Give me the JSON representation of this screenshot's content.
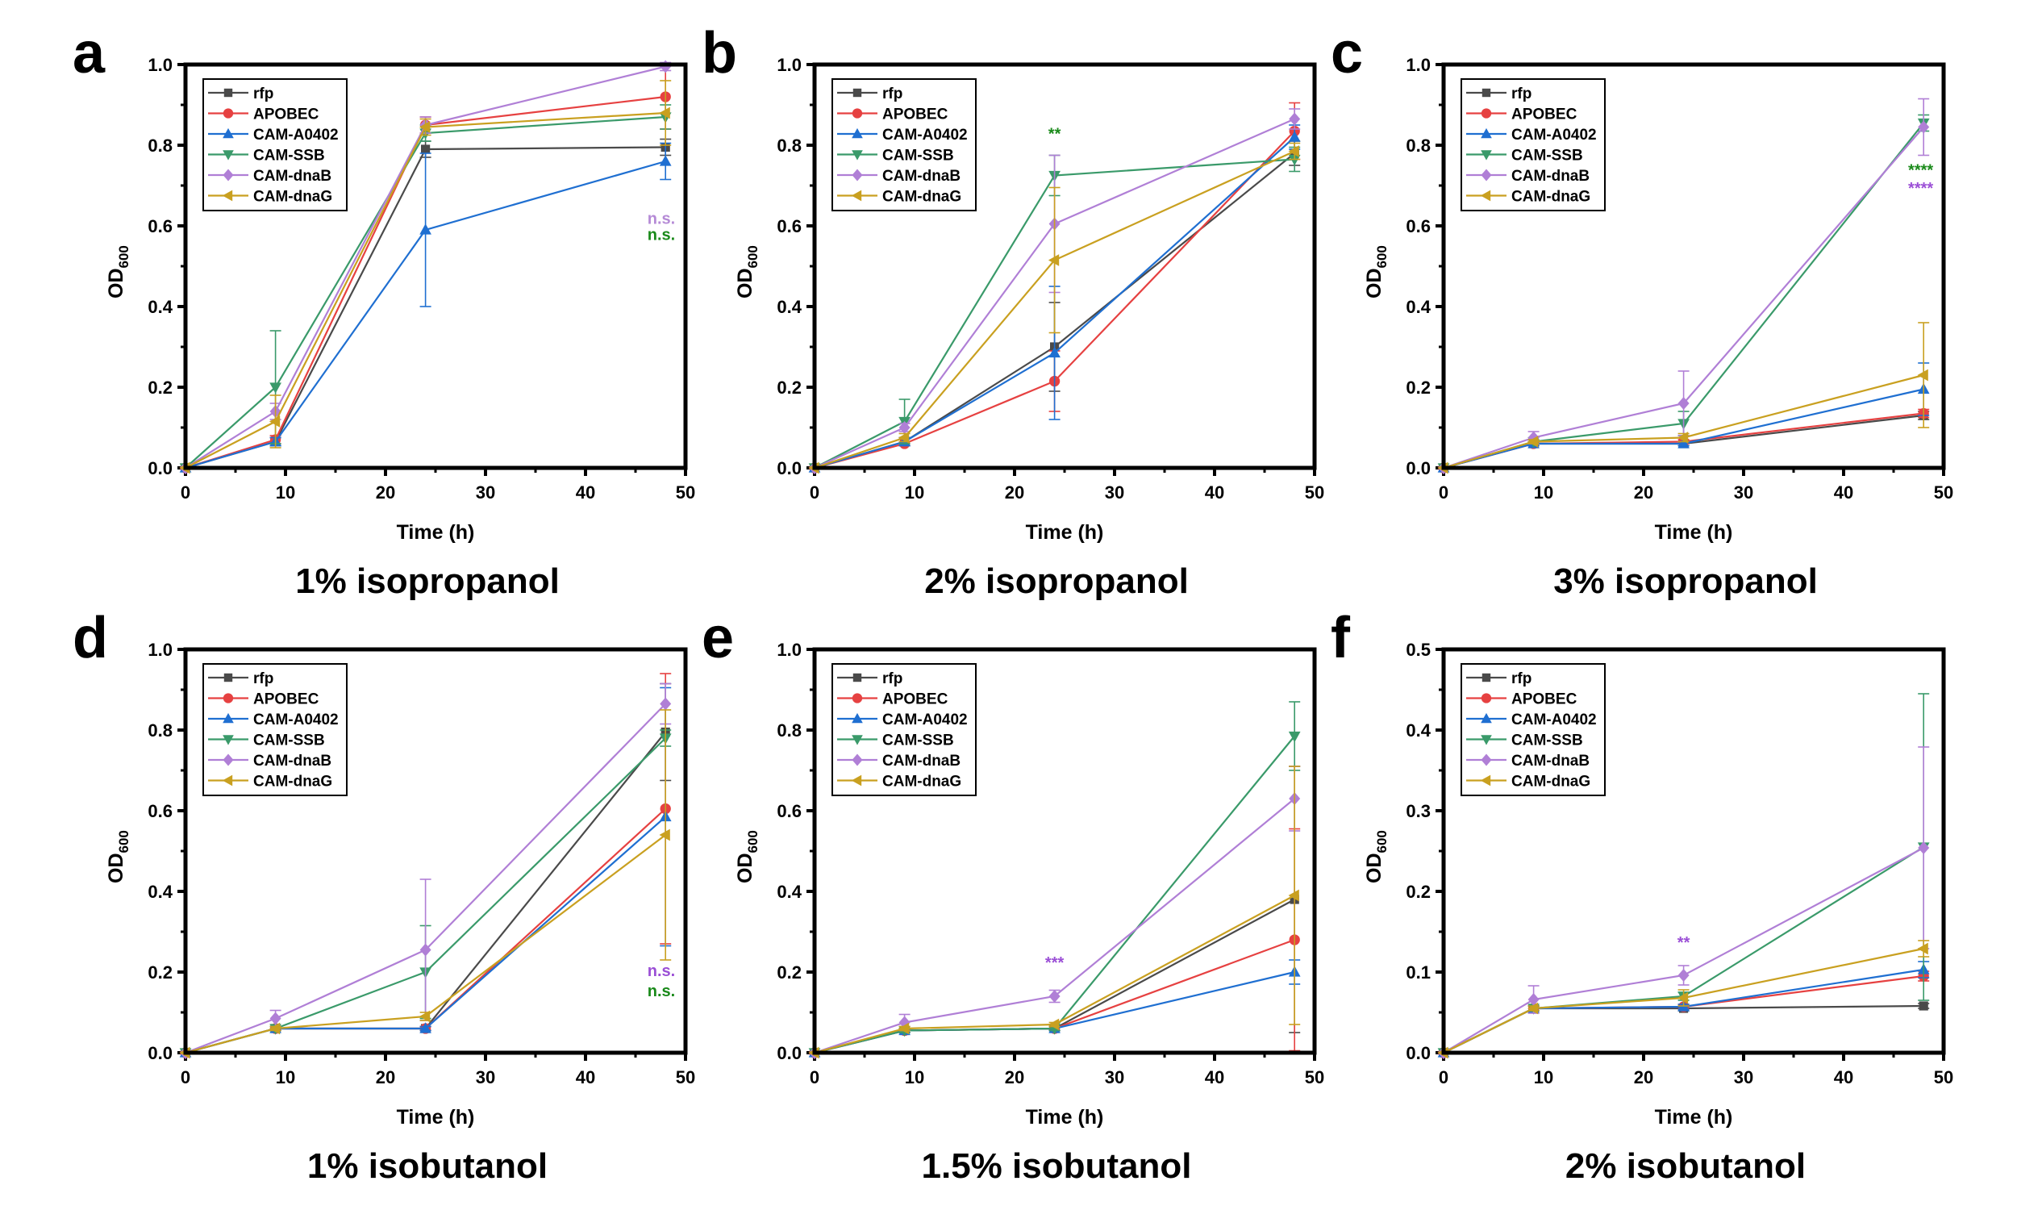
{
  "figure": {
    "series_styles": [
      {
        "name": "rfp",
        "color": "#4a4a4a",
        "marker": "square"
      },
      {
        "name": "APOBEC",
        "color": "#e64141",
        "marker": "circle"
      },
      {
        "name": "CAM-A0402",
        "color": "#1f6fd1",
        "marker": "triangle-up"
      },
      {
        "name": "CAM-SSB",
        "color": "#3a9a6a",
        "marker": "triangle-down"
      },
      {
        "name": "CAM-dnaB",
        "color": "#b07fd6",
        "marker": "diamond"
      },
      {
        "name": "CAM-dnaG",
        "color": "#c9a020",
        "marker": "triangle-left"
      }
    ],
    "annotation_colors": {
      "green": "#1a8a1a",
      "purple": "#9b4fd6",
      "lavender": "#b58ad6"
    }
  },
  "chart_data": [
    {
      "type": "line",
      "panel": "a",
      "title": "1% isopropanol",
      "xlabel": "Time (h)",
      "ylabel": "OD600",
      "ylabel_main": "OD",
      "ylabel_sub": "600",
      "xlim": [
        0,
        50
      ],
      "ylim": [
        0,
        1.0
      ],
      "xticks": [
        "0",
        "10",
        "20",
        "30",
        "40",
        "50"
      ],
      "yticks": [
        "0.0",
        "0.2",
        "0.4",
        "0.6",
        "0.8",
        "1.0"
      ],
      "legend_position": "top-left",
      "grid": false,
      "x": [
        0,
        9,
        24,
        48
      ],
      "series": [
        {
          "name": "rfp",
          "values": [
            0,
            0.065,
            0.79,
            0.795
          ],
          "err": [
            0,
            0.01,
            0.02,
            0.02
          ]
        },
        {
          "name": "APOBEC",
          "values": [
            0,
            0.07,
            0.85,
            0.92
          ],
          "err": [
            0,
            0.01,
            0.02,
            0.08
          ]
        },
        {
          "name": "CAM-A0402",
          "values": [
            0,
            0.065,
            0.59,
            0.76
          ],
          "err": [
            0,
            0.01,
            0.19,
            0.045
          ]
        },
        {
          "name": "CAM-SSB",
          "values": [
            0,
            0.2,
            0.83,
            0.87
          ],
          "err": [
            0,
            0.14,
            0.02,
            0.03
          ]
        },
        {
          "name": "CAM-dnaB",
          "values": [
            0,
            0.14,
            0.85,
            0.995
          ],
          "err": [
            0,
            0.02,
            0.02,
            0.01
          ]
        },
        {
          "name": "CAM-dnaG",
          "values": [
            0,
            0.115,
            0.845,
            0.88
          ],
          "err": [
            0,
            0.065,
            0.02,
            0.08
          ]
        }
      ],
      "annotations": [
        {
          "text": "n.s.",
          "x": 48,
          "y": 0.605,
          "color_key": "lavender"
        },
        {
          "text": "n.s.",
          "x": 48,
          "y": 0.565,
          "color_key": "green"
        }
      ]
    },
    {
      "type": "line",
      "panel": "b",
      "title": "2% isopropanol",
      "xlabel": "Time (h)",
      "ylabel": "OD600",
      "ylabel_main": "OD",
      "ylabel_sub": "600",
      "xlim": [
        0,
        50
      ],
      "ylim": [
        0,
        1.0
      ],
      "xticks": [
        "0",
        "10",
        "20",
        "30",
        "40",
        "50"
      ],
      "yticks": [
        "0.0",
        "0.2",
        "0.4",
        "0.6",
        "0.8",
        "1.0"
      ],
      "legend_position": "top-left",
      "grid": false,
      "x": [
        0,
        9,
        24,
        48
      ],
      "series": [
        {
          "name": "rfp",
          "values": [
            0,
            0.065,
            0.3,
            0.78
          ],
          "err": [
            0,
            0.01,
            0.11,
            0.03
          ]
        },
        {
          "name": "APOBEC",
          "values": [
            0,
            0.06,
            0.215,
            0.835
          ],
          "err": [
            0,
            0.005,
            0.075,
            0.07
          ]
        },
        {
          "name": "CAM-A0402",
          "values": [
            0,
            0.065,
            0.285,
            0.82
          ],
          "err": [
            0,
            0.01,
            0.165,
            0.03
          ]
        },
        {
          "name": "CAM-SSB",
          "values": [
            0,
            0.115,
            0.725,
            0.765
          ],
          "err": [
            0,
            0.055,
            0.05,
            0.03
          ]
        },
        {
          "name": "CAM-dnaB",
          "values": [
            0,
            0.1,
            0.605,
            0.865
          ],
          "err": [
            0,
            0.01,
            0.17,
            0.025
          ]
        },
        {
          "name": "CAM-dnaG",
          "values": [
            0,
            0.075,
            0.515,
            0.785
          ],
          "err": [
            0,
            0.01,
            0.18,
            0.02
          ]
        }
      ],
      "annotations": [
        {
          "text": "**",
          "x": 24,
          "y": 0.815,
          "color_key": "green"
        }
      ]
    },
    {
      "type": "line",
      "panel": "c",
      "title": "3% isopropanol",
      "xlabel": "Time (h)",
      "ylabel": "OD600",
      "ylabel_main": "OD",
      "ylabel_sub": "600",
      "xlim": [
        0,
        50
      ],
      "ylim": [
        0,
        1.0
      ],
      "xticks": [
        "0",
        "10",
        "20",
        "30",
        "40",
        "50"
      ],
      "yticks": [
        "0.0",
        "0.2",
        "0.4",
        "0.6",
        "0.8",
        "1.0"
      ],
      "legend_position": "top-left",
      "grid": false,
      "x": [
        0,
        9,
        24,
        48
      ],
      "series": [
        {
          "name": "rfp",
          "values": [
            0,
            0.06,
            0.06,
            0.13
          ],
          "err": [
            0,
            0.005,
            0.005,
            0.01
          ]
        },
        {
          "name": "APOBEC",
          "values": [
            0,
            0.06,
            0.065,
            0.135
          ],
          "err": [
            0,
            0.005,
            0.005,
            0.01
          ]
        },
        {
          "name": "CAM-A0402",
          "values": [
            0,
            0.06,
            0.06,
            0.195
          ],
          "err": [
            0,
            0.005,
            0.005,
            0.065
          ]
        },
        {
          "name": "CAM-SSB",
          "values": [
            0,
            0.065,
            0.11,
            0.855
          ],
          "err": [
            0,
            0.005,
            0.03,
            0.02
          ]
        },
        {
          "name": "CAM-dnaB",
          "values": [
            0,
            0.075,
            0.16,
            0.845
          ],
          "err": [
            0,
            0.015,
            0.08,
            0.07
          ]
        },
        {
          "name": "CAM-dnaG",
          "values": [
            0,
            0.065,
            0.075,
            0.23
          ],
          "err": [
            0,
            0.005,
            0.01,
            0.13
          ]
        }
      ],
      "annotations": [
        {
          "text": "****",
          "x": 48,
          "y": 0.725,
          "color_key": "green"
        },
        {
          "text": "****",
          "x": 48,
          "y": 0.68,
          "color_key": "purple"
        }
      ]
    },
    {
      "type": "line",
      "panel": "d",
      "title": "1% isobutanol",
      "xlabel": "Time (h)",
      "ylabel": "OD600",
      "ylabel_main": "OD",
      "ylabel_sub": "600",
      "xlim": [
        0,
        50
      ],
      "ylim": [
        0,
        1.0
      ],
      "xticks": [
        "0",
        "10",
        "20",
        "30",
        "40",
        "50"
      ],
      "yticks": [
        "0.0",
        "0.2",
        "0.4",
        "0.6",
        "0.8",
        "1.0"
      ],
      "legend_position": "top-left",
      "grid": false,
      "x": [
        0,
        9,
        24,
        48
      ],
      "series": [
        {
          "name": "rfp",
          "values": [
            0,
            0.06,
            0.06,
            0.795
          ],
          "err": [
            0,
            0.005,
            0.005,
            0.12
          ]
        },
        {
          "name": "APOBEC",
          "values": [
            0,
            0.06,
            0.06,
            0.605
          ],
          "err": [
            0,
            0.005,
            0.005,
            0.335
          ]
        },
        {
          "name": "CAM-A0402",
          "values": [
            0,
            0.06,
            0.06,
            0.585
          ],
          "err": [
            0,
            0.005,
            0.005,
            0.32
          ]
        },
        {
          "name": "CAM-SSB",
          "values": [
            0,
            0.06,
            0.2,
            0.78
          ],
          "err": [
            0,
            0.005,
            0.115,
            0.02
          ]
        },
        {
          "name": "CAM-dnaB",
          "values": [
            0,
            0.085,
            0.255,
            0.865
          ],
          "err": [
            0,
            0.02,
            0.175,
            0.05
          ]
        },
        {
          "name": "CAM-dnaG",
          "values": [
            0,
            0.06,
            0.09,
            0.54
          ],
          "err": [
            0,
            0.005,
            0.01,
            0.31
          ]
        }
      ],
      "annotations": [
        {
          "text": "n.s.",
          "x": 48,
          "y": 0.19,
          "color_key": "purple"
        },
        {
          "text": "n.s.",
          "x": 48,
          "y": 0.14,
          "color_key": "green"
        }
      ]
    },
    {
      "type": "line",
      "panel": "e",
      "title": "1.5% isobutanol",
      "xlabel": "Time (h)",
      "ylabel": "OD600",
      "ylabel_main": "OD",
      "ylabel_sub": "600",
      "xlim": [
        0,
        50
      ],
      "ylim": [
        0,
        1.0
      ],
      "xticks": [
        "0",
        "10",
        "20",
        "30",
        "40",
        "50"
      ],
      "yticks": [
        "0.0",
        "0.2",
        "0.4",
        "0.6",
        "0.8",
        "1.0"
      ],
      "legend_position": "top-left",
      "grid": false,
      "x": [
        0,
        9,
        24,
        48
      ],
      "series": [
        {
          "name": "rfp",
          "values": [
            0,
            0.055,
            0.06,
            0.38
          ],
          "err": [
            0,
            0.005,
            0.005,
            0.33
          ]
        },
        {
          "name": "APOBEC",
          "values": [
            0,
            0.055,
            0.06,
            0.28
          ],
          "err": [
            0,
            0.005,
            0.005,
            0.275
          ]
        },
        {
          "name": "CAM-A0402",
          "values": [
            0,
            0.055,
            0.06,
            0.2
          ],
          "err": [
            0,
            0.005,
            0.005,
            0.03
          ]
        },
        {
          "name": "CAM-SSB",
          "values": [
            0,
            0.055,
            0.06,
            0.785
          ],
          "err": [
            0,
            0.005,
            0.005,
            0.085
          ]
        },
        {
          "name": "CAM-dnaB",
          "values": [
            0,
            0.075,
            0.14,
            0.63
          ],
          "err": [
            0,
            0.02,
            0.015,
            0.08
          ]
        },
        {
          "name": "CAM-dnaG",
          "values": [
            0,
            0.06,
            0.07,
            0.39
          ],
          "err": [
            0,
            0.005,
            0.005,
            0.32
          ]
        }
      ],
      "annotations": [
        {
          "text": "***",
          "x": 24,
          "y": 0.21,
          "color_key": "purple"
        }
      ]
    },
    {
      "type": "line",
      "panel": "f",
      "title": "2% isobutanol",
      "xlabel": "Time (h)",
      "ylabel": "OD600",
      "ylabel_main": "OD",
      "ylabel_sub": "600",
      "xlim": [
        0,
        50
      ],
      "ylim": [
        0,
        0.5
      ],
      "xticks": [
        "0",
        "10",
        "20",
        "30",
        "40",
        "50"
      ],
      "yticks": [
        "0.0",
        "0.1",
        "0.2",
        "0.3",
        "0.4",
        "0.5"
      ],
      "legend_position": "top-left",
      "grid": false,
      "x": [
        0,
        9,
        24,
        48
      ],
      "series": [
        {
          "name": "rfp",
          "values": [
            0,
            0.055,
            0.055,
            0.058
          ],
          "err": [
            0,
            0.003,
            0.003,
            0.003
          ]
        },
        {
          "name": "APOBEC",
          "values": [
            0,
            0.055,
            0.057,
            0.095
          ],
          "err": [
            0,
            0.003,
            0.003,
            0.006
          ]
        },
        {
          "name": "CAM-A0402",
          "values": [
            0,
            0.055,
            0.057,
            0.103
          ],
          "err": [
            0,
            0.003,
            0.003,
            0.01
          ]
        },
        {
          "name": "CAM-SSB",
          "values": [
            0,
            0.055,
            0.07,
            0.255
          ],
          "err": [
            0,
            0.003,
            0.005,
            0.19
          ]
        },
        {
          "name": "CAM-dnaB",
          "values": [
            0,
            0.066,
            0.096,
            0.254
          ],
          "err": [
            0,
            0.017,
            0.012,
            0.125
          ]
        },
        {
          "name": "CAM-dnaG",
          "values": [
            0,
            0.055,
            0.068,
            0.129
          ],
          "err": [
            0,
            0.003,
            0.01,
            0.01
          ]
        }
      ],
      "annotations": [
        {
          "text": "**",
          "x": 24,
          "y": 0.13,
          "color_key": "purple"
        }
      ]
    }
  ]
}
